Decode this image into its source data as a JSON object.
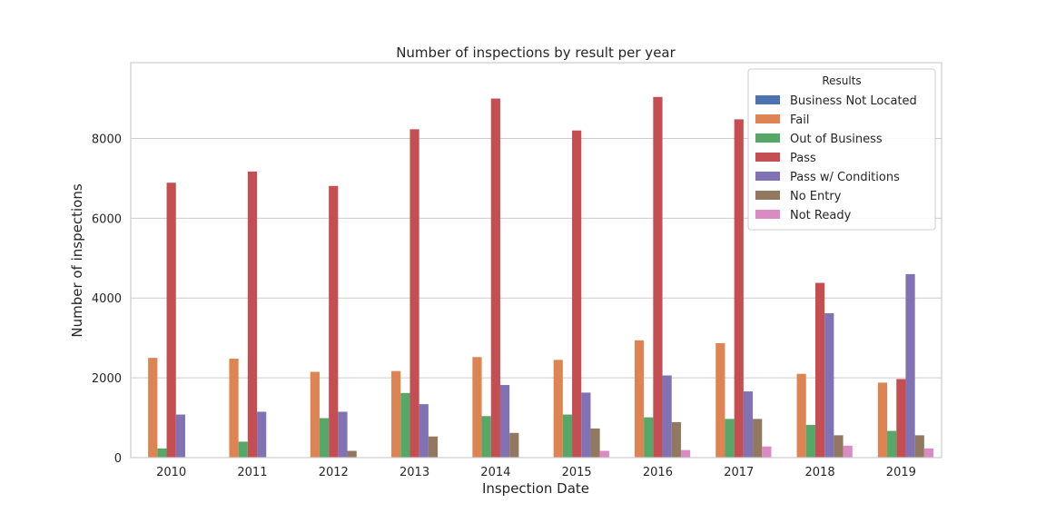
{
  "chart_data": {
    "type": "bar",
    "title": "Number of inspections by result per year",
    "xlabel": "Inspection Date",
    "ylabel": "Number of inspections",
    "categories": [
      "2010",
      "2011",
      "2012",
      "2013",
      "2014",
      "2015",
      "2016",
      "2017",
      "2018",
      "2019"
    ],
    "ylim": [
      0,
      9900
    ],
    "yticks": [
      0,
      2000,
      4000,
      6000,
      8000
    ],
    "grid": true,
    "legend": {
      "title": "Results",
      "placement": "top-right"
    },
    "series": [
      {
        "name": "Business Not Located",
        "color": "#4c72b0",
        "values": [
          0,
          0,
          0,
          0,
          0,
          0,
          0,
          0,
          0,
          0
        ]
      },
      {
        "name": "Fail",
        "color": "#dd8452",
        "values": [
          2500,
          2480,
          2150,
          2170,
          2520,
          2450,
          2940,
          2870,
          2100,
          1880
        ]
      },
      {
        "name": "Out of Business",
        "color": "#55a868",
        "values": [
          230,
          400,
          990,
          1620,
          1040,
          1080,
          1010,
          970,
          820,
          670
        ]
      },
      {
        "name": "Pass",
        "color": "#c44e52",
        "values": [
          6890,
          7170,
          6810,
          8230,
          9000,
          8200,
          9040,
          8480,
          4380,
          1970
        ]
      },
      {
        "name": "Pass w/ Conditions",
        "color": "#8172b3",
        "values": [
          1080,
          1150,
          1150,
          1340,
          1820,
          1630,
          2060,
          1660,
          3620,
          4600
        ]
      },
      {
        "name": "No Entry",
        "color": "#937860",
        "values": [
          0,
          0,
          170,
          530,
          620,
          730,
          890,
          970,
          560,
          560
        ]
      },
      {
        "name": "Not Ready",
        "color": "#da8bc3",
        "values": [
          0,
          0,
          0,
          0,
          0,
          170,
          190,
          280,
          300,
          230
        ]
      }
    ]
  }
}
